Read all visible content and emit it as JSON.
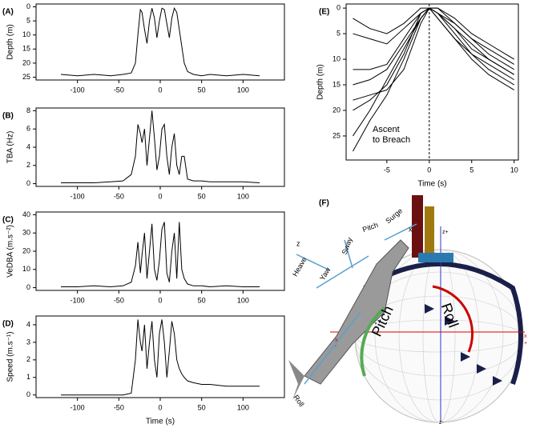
{
  "chart_data": [
    {
      "type": "line",
      "panel_label": "(A)",
      "ylabel": "Depth (m)",
      "color": "#000000",
      "x": [
        -120,
        -100,
        -80,
        -60,
        -45,
        -35,
        -30,
        -27,
        -24,
        -22,
        -19,
        -16,
        -13,
        -10,
        -7,
        -4,
        -1,
        2,
        5,
        8,
        11,
        14,
        17,
        20,
        23,
        26,
        29,
        33,
        40,
        50,
        60,
        80,
        100,
        120
      ],
      "values": [
        24,
        24.5,
        24,
        24.5,
        24,
        23.5,
        20,
        10,
        1,
        2,
        8,
        13,
        5,
        0.5,
        4,
        11,
        5,
        0.5,
        1,
        6,
        11,
        4,
        0.5,
        2,
        8,
        14,
        20,
        23,
        24,
        24.5,
        24,
        24.5,
        24,
        24.5
      ],
      "xlim": [
        -150,
        150
      ],
      "xticks": [
        -100,
        -50,
        0,
        50,
        100
      ],
      "ylim": [
        26,
        -1
      ],
      "yticks": [
        0,
        5,
        10,
        15,
        20,
        25
      ]
    },
    {
      "type": "line",
      "panel_label": "(B)",
      "ylabel": "TBA (Hz)",
      "color": "#000000",
      "x": [
        -120,
        -100,
        -80,
        -60,
        -45,
        -35,
        -30,
        -27,
        -24,
        -22,
        -19,
        -16,
        -13,
        -10,
        -7,
        -4,
        -1,
        2,
        5,
        8,
        11,
        14,
        17,
        20,
        23,
        26,
        29,
        33,
        40,
        50,
        60,
        80,
        100,
        120
      ],
      "values": [
        0.1,
        0.1,
        0.1,
        0.2,
        0.3,
        1,
        3,
        6.5,
        5.5,
        4.5,
        6,
        2,
        5,
        8,
        5,
        1.5,
        3,
        6,
        6.5,
        3,
        1,
        4,
        5.5,
        2,
        1,
        3,
        3,
        0.5,
        0.3,
        0.3,
        0.2,
        0.2,
        0.2,
        0.1
      ],
      "xlim": [
        -150,
        150
      ],
      "xticks": [
        -100,
        -50,
        0,
        50,
        100
      ],
      "ylim": [
        -0.3,
        8.3
      ],
      "yticks": [
        0,
        2,
        4,
        6,
        8
      ]
    },
    {
      "type": "line",
      "panel_label": "(C)",
      "ylabel": "VeDBA (m.s⁻²)",
      "color": "#000000",
      "x": [
        -120,
        -100,
        -80,
        -60,
        -45,
        -35,
        -30,
        -27,
        -24,
        -22,
        -19,
        -16,
        -13,
        -10,
        -7,
        -4,
        -1,
        2,
        5,
        8,
        11,
        14,
        17,
        20,
        23,
        26,
        29,
        33,
        40,
        50,
        60,
        80,
        100,
        120
      ],
      "values": [
        0.5,
        0.5,
        1,
        0.5,
        1,
        3,
        12,
        25,
        8,
        18,
        30,
        5,
        20,
        35,
        10,
        4,
        15,
        32,
        36,
        8,
        3,
        20,
        30,
        5,
        36,
        10,
        5,
        2,
        1,
        1,
        0.5,
        1,
        0.5,
        0.5
      ],
      "xlim": [
        -150,
        150
      ],
      "xticks": [
        -100,
        -50,
        0,
        50,
        100
      ],
      "ylim": [
        -1.5,
        41.5
      ],
      "yticks": [
        0,
        10,
        20,
        30,
        40
      ]
    },
    {
      "type": "line",
      "panel_label": "(D)",
      "ylabel": "Speed (m.s⁻¹)",
      "xlabel": "Time (s)",
      "color": "#000000",
      "x": [
        -120,
        -100,
        -80,
        -60,
        -45,
        -35,
        -30,
        -27,
        -24,
        -22,
        -19,
        -16,
        -13,
        -10,
        -7,
        -4,
        -1,
        2,
        5,
        8,
        11,
        14,
        17,
        20,
        23,
        26,
        29,
        33,
        40,
        50,
        60,
        80,
        100,
        120
      ],
      "values": [
        0,
        0,
        0,
        0,
        0,
        0.1,
        2,
        4.3,
        3,
        2.5,
        4,
        1.5,
        3,
        4.2,
        2,
        1,
        3.5,
        4.3,
        3,
        1,
        2.5,
        4.2,
        3.5,
        2,
        1.5,
        1.2,
        1,
        0.8,
        0.7,
        0.6,
        0.6,
        0.5,
        0.5,
        0.5
      ],
      "xlim": [
        -150,
        150
      ],
      "xticks": [
        -100,
        -50,
        0,
        50,
        100
      ],
      "ylim": [
        -0.15,
        4.5
      ],
      "yticks": [
        0,
        1,
        2,
        3,
        4
      ]
    },
    {
      "type": "multiline",
      "panel_label": "(E)",
      "ylabel": "Depth (m)",
      "xlabel": "Time (s)",
      "annotation": [
        "Ascent",
        "to Breach"
      ],
      "vline": 0,
      "x": [
        -9,
        -7,
        -5,
        -3,
        -1,
        0,
        1,
        3,
        5,
        7,
        9,
        10
      ],
      "series": [
        {
          "color": "#000000",
          "values": [
            28,
            22,
            17,
            10,
            2,
            0,
            1,
            5,
            9,
            12,
            14,
            15
          ]
        },
        {
          "color": "#000000",
          "values": [
            25,
            20,
            14,
            8,
            2,
            0,
            2,
            6,
            10,
            13,
            15,
            16
          ]
        },
        {
          "color": "#000000",
          "values": [
            20,
            18,
            15,
            9,
            1,
            0,
            1,
            4,
            7,
            10,
            12,
            13
          ]
        },
        {
          "color": "#000000",
          "values": [
            15,
            14,
            12,
            7,
            2,
            0,
            1,
            3,
            6,
            8,
            10,
            11
          ]
        },
        {
          "color": "#000000",
          "values": [
            12,
            12,
            11,
            6,
            1,
            0,
            0,
            2,
            5,
            7,
            9,
            10
          ]
        },
        {
          "color": "#000000",
          "values": [
            5,
            6,
            7,
            4,
            1,
            0,
            1,
            4,
            8,
            10,
            12,
            13
          ]
        },
        {
          "color": "#000000",
          "values": [
            2,
            4,
            5,
            3,
            0,
            0,
            0,
            3,
            6,
            9,
            11,
            12
          ]
        },
        {
          "color": "#000000",
          "values": [
            18,
            17,
            16,
            12,
            3,
            0,
            2,
            6,
            9,
            11,
            13,
            14
          ]
        }
      ],
      "xlim": [
        -9.8,
        10.5
      ],
      "xticks": [
        -5,
        0,
        5,
        10
      ],
      "ylim": [
        29.7,
        -0.8
      ],
      "yticks": [
        0,
        5,
        10,
        15,
        20,
        25
      ]
    }
  ],
  "diagram": {
    "panel_label": "(F)",
    "labels": [
      "Heave",
      "Yaw",
      "Sway",
      "Pitch",
      "Surge",
      "Roll",
      "z",
      "x",
      "Pitch",
      "Roll",
      "z+",
      "z-",
      "x",
      "-",
      "x",
      "+"
    ]
  }
}
